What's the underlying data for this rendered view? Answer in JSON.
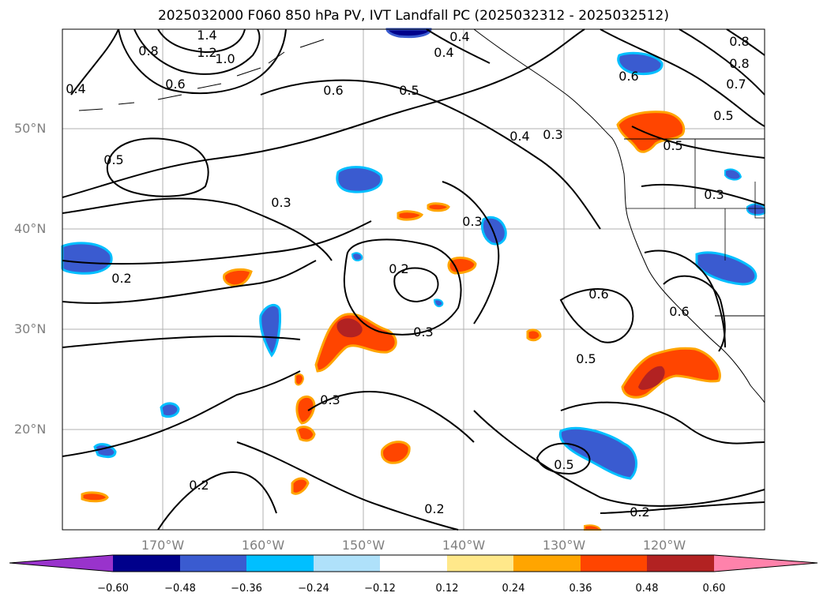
{
  "title": "2025032000 F060 850 hPa PV, IVT Landfall PC (2025032312 - 2025032512)",
  "map": {
    "lat_labels": [
      "50°N",
      "40°N",
      "30°N",
      "20°N"
    ],
    "lon_labels": [
      "170°W",
      "160°W",
      "150°W",
      "140°W",
      "130°W",
      "120°W"
    ],
    "lat_range": [
      10,
      60
    ],
    "lon_range": [
      -180,
      -110
    ],
    "gridlines": true,
    "coastlines": true,
    "pv_contour_labels": [
      "1.4",
      "1.2",
      "1.0",
      "0.8",
      "0.6",
      "0.4",
      "0.5",
      "0.3",
      "0.2",
      "0.7"
    ]
  },
  "colorbar": {
    "ticks": [
      "−0.60",
      "−0.48",
      "−0.36",
      "−0.24",
      "−0.12",
      "0.12",
      "0.24",
      "0.36",
      "0.48",
      "0.60"
    ],
    "colors": [
      "#9933cc",
      "#00008b",
      "#3a5bd0",
      "#00bfff",
      "#afe1fa",
      "#ffffff",
      "#ffe88a",
      "#ffa500",
      "#ff4500",
      "#b22222",
      "#ff82ab"
    ],
    "extend": "both"
  }
}
